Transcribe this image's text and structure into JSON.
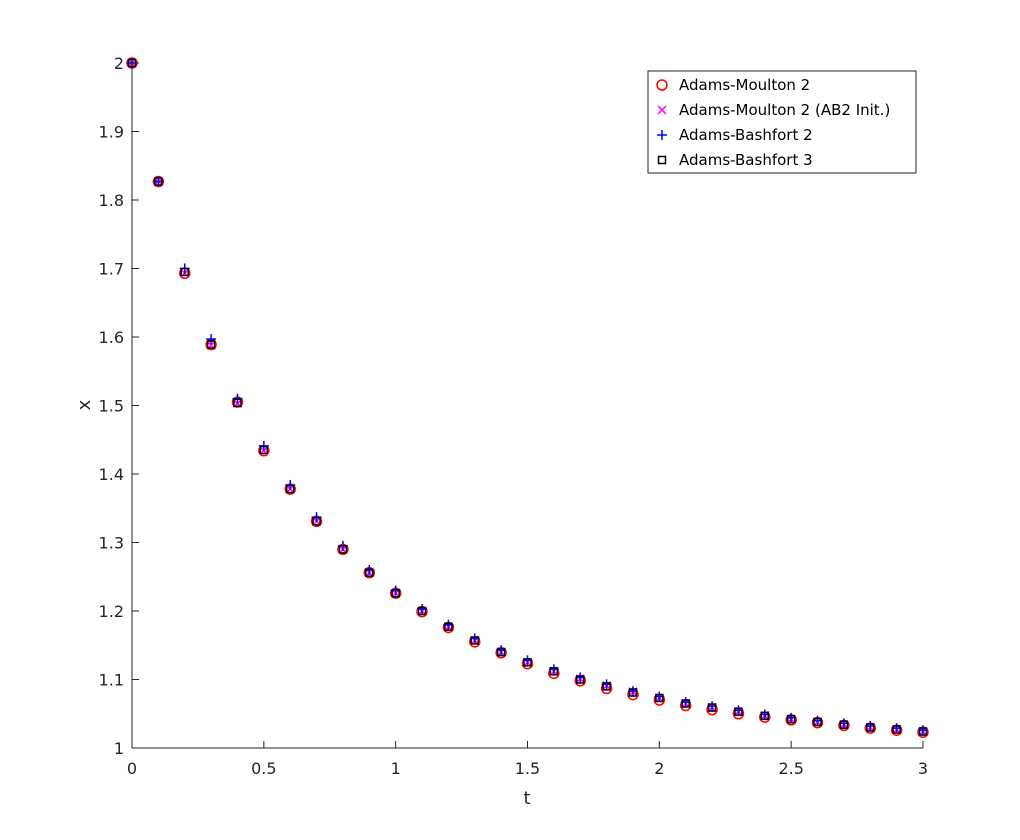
{
  "chart_data": {
    "type": "scatter",
    "title": "",
    "xlabel": "t",
    "ylabel": "x",
    "xlim": [
      0,
      3
    ],
    "ylim": [
      1,
      2
    ],
    "x_ticks": [
      "0",
      "0.5",
      "1",
      "1.5",
      "2",
      "2.5",
      "3"
    ],
    "y_ticks": [
      "1",
      "1.1",
      "1.2",
      "1.3",
      "1.4",
      "1.5",
      "1.6",
      "1.7",
      "1.8",
      "1.9",
      "2"
    ],
    "grid": false,
    "legend_position": "top-right",
    "x": [
      0,
      0.1,
      0.2,
      0.3,
      0.4,
      0.5,
      0.6,
      0.7,
      0.8,
      0.9,
      1.0,
      1.1,
      1.2,
      1.3,
      1.4,
      1.5,
      1.6,
      1.7,
      1.8,
      1.9,
      2.0,
      2.1,
      2.2,
      2.3,
      2.4,
      2.5,
      2.6,
      2.7,
      2.8,
      2.9,
      3.0
    ],
    "series": [
      {
        "name": "Adams-Moulton 2",
        "marker": "circle",
        "color": "#ff0000",
        "values": [
          2.0,
          1.827,
          1.693,
          1.589,
          1.505,
          1.434,
          1.378,
          1.331,
          1.29,
          1.256,
          1.226,
          1.199,
          1.176,
          1.155,
          1.139,
          1.123,
          1.109,
          1.098,
          1.087,
          1.078,
          1.07,
          1.062,
          1.056,
          1.05,
          1.045,
          1.041,
          1.037,
          1.033,
          1.029,
          1.026,
          1.023
        ]
      },
      {
        "name": "Adams-Moulton 2 (AB2 Init.)",
        "marker": "x",
        "color": "#ff00ff",
        "values": [
          2.0,
          1.827,
          1.693,
          1.588,
          1.503,
          1.434,
          1.378,
          1.331,
          1.29,
          1.256,
          1.226,
          1.2,
          1.177,
          1.157,
          1.14,
          1.125,
          1.112,
          1.101,
          1.091,
          1.082,
          1.073,
          1.065,
          1.059,
          1.053,
          1.047,
          1.042,
          1.038,
          1.034,
          1.03,
          1.027,
          1.024
        ]
      },
      {
        "name": "Adams-Bashfort 2",
        "marker": "plus",
        "color": "#0000ff",
        "values": [
          2.0,
          1.827,
          1.7,
          1.597,
          1.51,
          1.441,
          1.384,
          1.337,
          1.295,
          1.26,
          1.23,
          1.203,
          1.18,
          1.16,
          1.143,
          1.128,
          1.115,
          1.103,
          1.093,
          1.083,
          1.075,
          1.067,
          1.061,
          1.055,
          1.049,
          1.044,
          1.04,
          1.036,
          1.032,
          1.029,
          1.026
        ]
      },
      {
        "name": "Adams-Bashfort 3",
        "marker": "square",
        "color": "#000000",
        "values": [
          2.0,
          1.827,
          1.695,
          1.589,
          1.504,
          1.435,
          1.378,
          1.331,
          1.29,
          1.256,
          1.226,
          1.2,
          1.177,
          1.157,
          1.14,
          1.125,
          1.112,
          1.1,
          1.09,
          1.081,
          1.073,
          1.065,
          1.059,
          1.053,
          1.047,
          1.042,
          1.038,
          1.034,
          1.03,
          1.027,
          1.024
        ]
      }
    ]
  }
}
